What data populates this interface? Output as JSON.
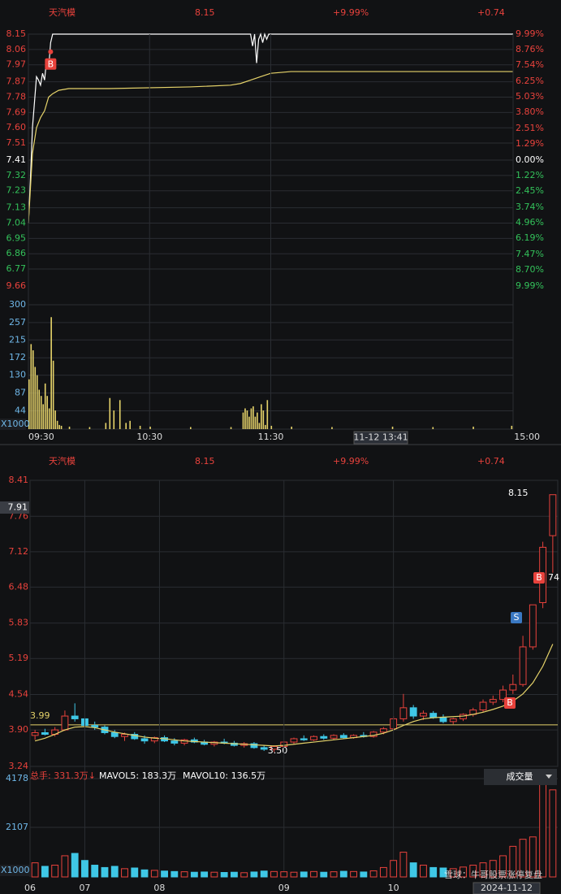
{
  "quote": {
    "name": "天汽模",
    "price": "8.15",
    "change_pct": "+9.99%",
    "change": "+0.74"
  },
  "watermark": "雪球：牛哥股票涨停复盘",
  "chart_data": [
    {
      "type": "line",
      "up_color": "#e8423c",
      "down_color": "#33c15a",
      "flat_color": "#ffffff",
      "xlim": [
        0,
        240
      ],
      "ylim": [
        6.67,
        8.15
      ],
      "y2lim": [
        -9.99,
        9.99
      ],
      "yticks": [
        8.15,
        8.06,
        7.97,
        7.87,
        7.78,
        7.69,
        {
          "value": 7.6,
          "label": "7.60"
        },
        7.51,
        7.41,
        7.32,
        7.23,
        7.13,
        7.04,
        6.95,
        6.86,
        6.77
      ],
      "y2ticks": [
        {
          "value": 9.99,
          "label": "9.99%"
        },
        {
          "value": 8.76,
          "label": "8.76%"
        },
        {
          "value": 7.54,
          "label": "7.54%"
        },
        {
          "value": 6.25,
          "label": "6.25%"
        },
        {
          "value": 5.03,
          "label": "5.03%"
        },
        {
          "value": 3.8,
          "label": "3.80%"
        },
        {
          "value": 2.51,
          "label": "2.51%"
        },
        {
          "value": 1.29,
          "label": "1.29%"
        },
        {
          "value": 0,
          "label": "0.00%"
        },
        {
          "value": -1.22,
          "label": "1.22%"
        },
        {
          "value": -2.45,
          "label": "2.45%"
        },
        {
          "value": -3.74,
          "label": "3.74%"
        },
        {
          "value": -4.96,
          "label": "4.96%"
        },
        {
          "value": -6.19,
          "label": "6.19%"
        },
        {
          "value": -7.47,
          "label": "7.47%"
        },
        {
          "value": -8.7,
          "label": "8.70%"
        },
        {
          "value": -9.99,
          "label": "9.99%"
        }
      ],
      "series": [
        {
          "color": "#ffffff",
          "x": [
            0,
            1,
            2,
            3,
            4,
            5,
            6,
            7,
            8,
            9,
            10,
            11,
            12,
            13,
            14,
            110,
            111,
            112,
            113,
            114,
            115,
            116,
            117,
            118,
            119,
            120,
            240
          ],
          "values": [
            7.04,
            7.3,
            7.6,
            7.75,
            7.9,
            7.88,
            7.85,
            7.92,
            7.88,
            8.0,
            7.95,
            8.1,
            8.15,
            8.15,
            8.15,
            8.15,
            8.08,
            8.15,
            7.98,
            8.12,
            8.15,
            8.1,
            8.15,
            8.12,
            8.15,
            8.15,
            8.15
          ]
        },
        {
          "color": "#e6d36a",
          "x": [
            0,
            2,
            4,
            6,
            8,
            10,
            12,
            15,
            20,
            40,
            80,
            100,
            105,
            110,
            115,
            120,
            130,
            150,
            240
          ],
          "values": [
            7.04,
            7.45,
            7.6,
            7.66,
            7.7,
            7.78,
            7.8,
            7.82,
            7.83,
            7.83,
            7.84,
            7.85,
            7.86,
            7.88,
            7.9,
            7.92,
            7.93,
            7.93,
            7.93
          ]
        }
      ],
      "bottom_label": "9.66",
      "annotations": [
        {
          "text": "B",
          "x": 11,
          "y": 7.97
        }
      ]
    },
    {
      "type": "bar",
      "color": "#e6d36a",
      "xlim": [
        0,
        240
      ],
      "ylim": [
        0,
        343
      ],
      "xticks": [
        {
          "value": 0,
          "label": "09:30"
        },
        {
          "value": 60,
          "label": "10:30"
        },
        {
          "value": 120,
          "label": "11:30"
        },
        {
          "value": 240,
          "label": "15:00"
        }
      ],
      "yticks": [
        300,
        257,
        215,
        172,
        130,
        87,
        44
      ],
      "x": [
        0,
        1,
        2,
        3,
        4,
        5,
        6,
        7,
        8,
        9,
        10,
        11,
        12,
        13,
        14,
        15,
        16,
        20,
        30,
        38,
        40,
        42,
        45,
        48,
        50,
        55,
        60,
        80,
        100,
        106,
        107,
        108,
        109,
        110,
        111,
        112,
        113,
        114,
        115,
        116,
        117,
        118,
        120,
        130,
        150,
        180,
        200,
        220,
        239
      ],
      "values": [
        120,
        205,
        190,
        150,
        130,
        95,
        80,
        60,
        110,
        80,
        50,
        270,
        165,
        45,
        20,
        10,
        8,
        6,
        5,
        15,
        75,
        45,
        70,
        15,
        20,
        8,
        6,
        5,
        5,
        40,
        50,
        45,
        30,
        50,
        55,
        30,
        40,
        15,
        60,
        45,
        10,
        70,
        8,
        6,
        5,
        6,
        5,
        6,
        8
      ],
      "unit": "X1000",
      "cursor_label": "11-12 13:41"
    },
    {
      "type": "candlestick",
      "up_color": "#e8423c",
      "down_color": "#3fc7e6",
      "xlim": [
        0,
        53
      ],
      "ylim": [
        3.24,
        8.41
      ],
      "yticks": [
        8.41,
        7.76,
        7.12,
        6.48,
        5.83,
        5.19,
        4.54,
        {
          "value": 3.9,
          "label": "3.90"
        },
        3.24
      ],
      "open": [
        3.8,
        3.85,
        3.82,
        3.9,
        4.15,
        4.1,
        3.98,
        3.95,
        3.85,
        3.78,
        3.82,
        3.74,
        3.7,
        3.76,
        3.7,
        3.66,
        3.72,
        3.68,
        3.64,
        3.68,
        3.66,
        3.62,
        3.65,
        3.58,
        3.55,
        3.6,
        3.68,
        3.74,
        3.72,
        3.78,
        3.75,
        3.8,
        3.76,
        3.8,
        3.78,
        3.86,
        3.92,
        4.1,
        4.3,
        4.15,
        4.2,
        4.12,
        4.05,
        4.1,
        4.18,
        4.26,
        4.4,
        4.45,
        4.62,
        4.72,
        5.4,
        6.2,
        7.41
      ],
      "high": [
        3.9,
        3.92,
        3.95,
        4.25,
        4.38,
        4.12,
        4.05,
        3.98,
        3.9,
        3.85,
        3.86,
        3.8,
        3.78,
        3.8,
        3.75,
        3.74,
        3.76,
        3.72,
        3.7,
        3.74,
        3.7,
        3.68,
        3.68,
        3.62,
        3.62,
        3.7,
        3.76,
        3.8,
        3.8,
        3.82,
        3.82,
        3.84,
        3.82,
        3.86,
        3.88,
        3.95,
        4.15,
        4.55,
        4.35,
        4.25,
        4.24,
        4.18,
        4.12,
        4.2,
        4.3,
        4.45,
        4.52,
        4.7,
        4.9,
        5.6,
        6.16,
        7.3,
        8.15
      ],
      "low": [
        3.72,
        3.8,
        3.78,
        3.88,
        4.05,
        3.95,
        3.9,
        3.82,
        3.75,
        3.7,
        3.72,
        3.65,
        3.66,
        3.68,
        3.62,
        3.62,
        3.66,
        3.62,
        3.6,
        3.64,
        3.6,
        3.58,
        3.56,
        3.52,
        3.5,
        3.58,
        3.64,
        3.7,
        3.7,
        3.72,
        3.72,
        3.74,
        3.74,
        3.76,
        3.76,
        3.82,
        3.9,
        4.05,
        4.1,
        4.08,
        4.1,
        4.02,
        4.0,
        4.06,
        4.14,
        4.22,
        4.35,
        4.4,
        4.55,
        4.68,
        5.35,
        6.1,
        6.74
      ],
      "close": [
        3.85,
        3.82,
        3.9,
        4.15,
        4.1,
        3.98,
        3.95,
        3.85,
        3.78,
        3.82,
        3.74,
        3.7,
        3.76,
        3.7,
        3.66,
        3.72,
        3.68,
        3.64,
        3.68,
        3.66,
        3.62,
        3.65,
        3.58,
        3.55,
        3.6,
        3.68,
        3.74,
        3.72,
        3.78,
        3.75,
        3.8,
        3.76,
        3.8,
        3.78,
        3.86,
        3.92,
        4.1,
        4.3,
        4.15,
        4.2,
        4.12,
        4.05,
        4.1,
        4.18,
        4.26,
        4.4,
        4.45,
        4.62,
        4.72,
        5.4,
        6.16,
        7.2,
        8.15
      ],
      "ma": {
        "color": "#e6d36a",
        "values": [
          3.7,
          3.75,
          3.82,
          3.9,
          3.95,
          3.96,
          3.94,
          3.9,
          3.86,
          3.83,
          3.8,
          3.77,
          3.75,
          3.74,
          3.72,
          3.7,
          3.69,
          3.68,
          3.67,
          3.66,
          3.65,
          3.64,
          3.63,
          3.62,
          3.61,
          3.62,
          3.64,
          3.66,
          3.68,
          3.7,
          3.72,
          3.74,
          3.76,
          3.78,
          3.8,
          3.84,
          3.9,
          3.98,
          4.05,
          4.1,
          4.12,
          4.13,
          4.14,
          4.15,
          4.18,
          4.22,
          4.27,
          4.33,
          4.42,
          4.55,
          4.75,
          5.05,
          5.45
        ]
      },
      "ref_line": 3.99,
      "annotations": [
        {
          "text": "8.15"
        },
        {
          "text": "3.50"
        },
        {
          "text": "S"
        },
        {
          "text": "B"
        },
        {
          "text": "B"
        },
        {
          "text": "74"
        }
      ],
      "cursor_label": "7.91"
    },
    {
      "type": "bar",
      "xlim": [
        0,
        53
      ],
      "ylim": [
        0,
        4178
      ],
      "yticks": [
        4178,
        2107
      ],
      "xticks": [
        {
          "value": 0,
          "label": "06"
        },
        {
          "value": 5.5,
          "label": "07"
        },
        {
          "value": 13,
          "label": "08"
        },
        {
          "value": 25.5,
          "label": "09"
        },
        {
          "value": 36.5,
          "label": "10"
        }
      ],
      "values": [
        600,
        450,
        500,
        900,
        1000,
        700,
        500,
        400,
        450,
        350,
        380,
        300,
        280,
        250,
        230,
        220,
        200,
        210,
        200,
        190,
        200,
        180,
        210,
        250,
        230,
        220,
        200,
        210,
        230,
        200,
        220,
        240,
        230,
        210,
        260,
        400,
        700,
        1050,
        600,
        500,
        400,
        380,
        350,
        420,
        500,
        600,
        700,
        900,
        1300,
        1600,
        1700,
        4000,
        3700
      ],
      "legend": [
        "总手: 331.3万↓",
        "MAVOL5: 183.3万",
        "MAVOL10: 136.5万"
      ],
      "unit": "X1000",
      "indicator": "成交量",
      "cursor_date": "2024-11-12"
    }
  ]
}
